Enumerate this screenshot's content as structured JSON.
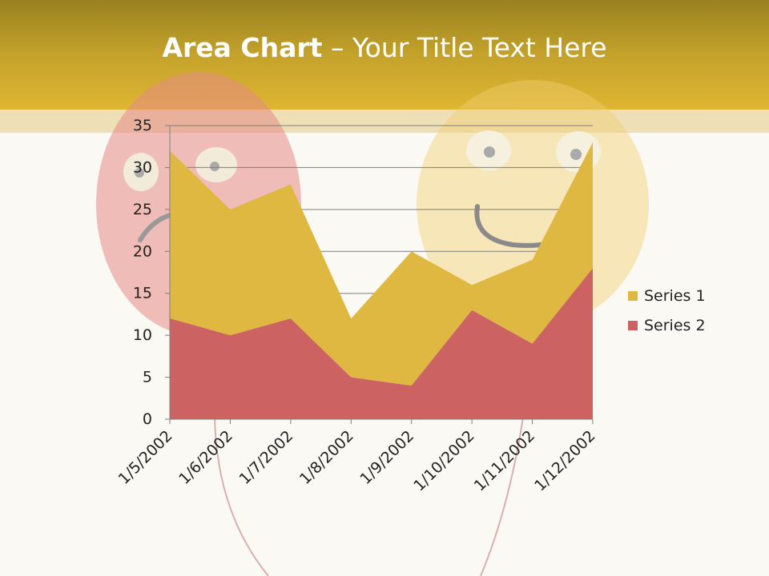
{
  "slide": {
    "title_bold": "Area Chart",
    "title_rest": " – Your Title Text Here"
  },
  "colors": {
    "series1": "#dfb842",
    "series2": "#cd6262",
    "header": "#c4a22b",
    "background": "#fbf9f3"
  },
  "chart_data": {
    "type": "area",
    "stacked": true,
    "categories": [
      "1/5/2002",
      "1/6/2002",
      "1/7/2002",
      "1/8/2002",
      "1/9/2002",
      "1/10/2002",
      "1/11/2002",
      "1/12/2002"
    ],
    "series": [
      {
        "name": "Series 1",
        "values": [
          20,
          15,
          16,
          7,
          16,
          3,
          10,
          15
        ]
      },
      {
        "name": "Series 2",
        "values": [
          12,
          10,
          12,
          5,
          4,
          13,
          9,
          18
        ]
      }
    ],
    "ylim": [
      0,
      35
    ],
    "yticks": [
      0,
      5,
      10,
      15,
      20,
      25,
      30,
      35
    ],
    "grid": true,
    "legend": "right",
    "title": "",
    "xlabel": "",
    "ylabel": ""
  }
}
